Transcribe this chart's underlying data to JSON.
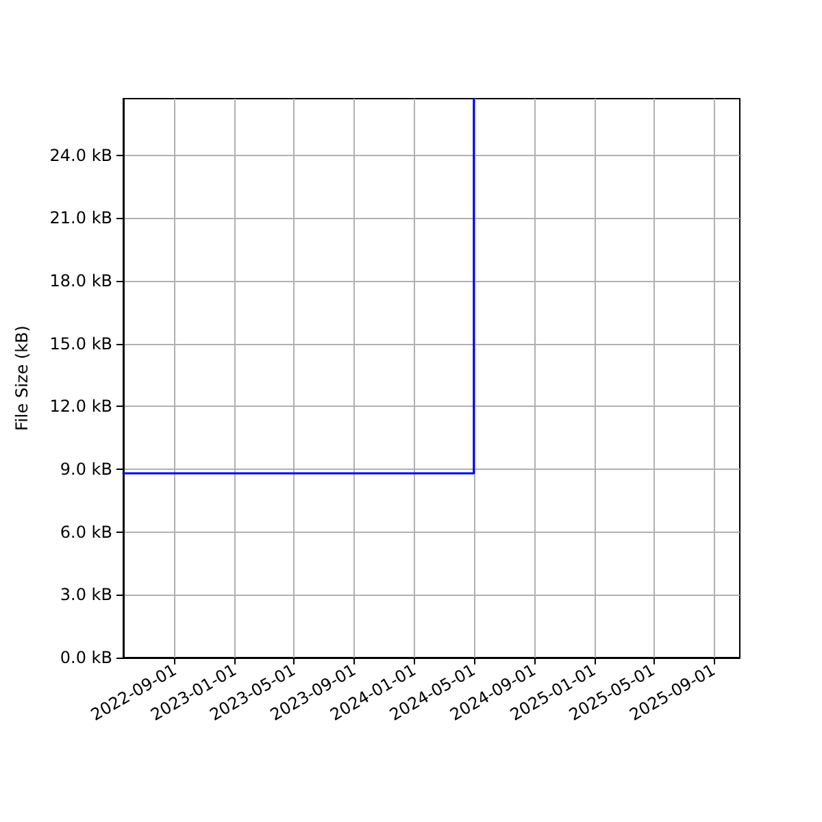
{
  "chart_data": {
    "type": "line",
    "ylabel": "File Size (kB)",
    "x": [
      "2022-05-19",
      "2024-05-01",
      "2024-05-01"
    ],
    "series": [
      {
        "color": "#0000ff",
        "values": [
          8.8,
          8.8,
          26.7
        ]
      }
    ],
    "xlim": [
      "2022-05-19",
      "2025-10-24"
    ],
    "xticks": [
      "2022-09-01",
      "2023-01-01",
      "2023-05-01",
      "2023-09-01",
      "2024-01-01",
      "2024-05-01",
      "2024-09-01",
      "2025-01-01",
      "2025-05-01",
      "2025-09-01"
    ],
    "ylim": [
      0,
      26.7
    ],
    "yticks": [
      {
        "value": 0,
        "label": "0.0 kB"
      },
      {
        "value": 3,
        "label": "3.0 kB"
      },
      {
        "value": 6,
        "label": "6.0 kB"
      },
      {
        "value": 9,
        "label": "9.0 kB"
      },
      {
        "value": 12,
        "label": "12.0 kB"
      },
      {
        "value": 15,
        "label": "15.0 kB"
      },
      {
        "value": 18,
        "label": "18.0 kB"
      },
      {
        "value": 21,
        "label": "21.0 kB"
      },
      {
        "value": 24,
        "label": "24.0 kB"
      }
    ],
    "grid": true,
    "marker": "none",
    "line_style": "solid"
  }
}
